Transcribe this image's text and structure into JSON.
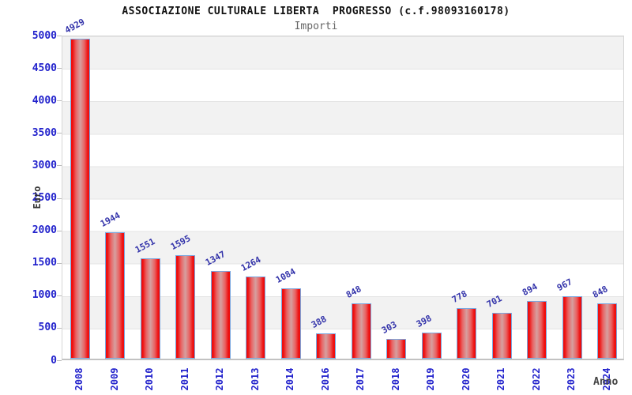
{
  "header": {
    "title": "ASSOCIAZIONE CULTURALE LIBERTA  PROGRESSO (c.f.98093160178)",
    "subtitle": "Importi"
  },
  "chart_data": {
    "type": "bar",
    "title": "ASSOCIAZIONE CULTURALE LIBERTA  PROGRESSO (c.f.98093160178)",
    "subtitle": "Importi",
    "categories": [
      "2008",
      "2009",
      "2010",
      "2011",
      "2012",
      "2013",
      "2014",
      "2016",
      "2017",
      "2018",
      "2019",
      "2020",
      "2021",
      "2022",
      "2023",
      "2024"
    ],
    "values": [
      4929,
      1944,
      1551,
      1595,
      1347,
      1264,
      1084,
      388,
      848,
      303,
      398,
      778,
      701,
      894,
      967,
      848
    ],
    "xlabel": "Anno",
    "ylabel": "Euro",
    "ylim": [
      0,
      5000
    ],
    "ytick_step": 500,
    "grid": true,
    "legend_position": "none",
    "colors": {
      "bar_edge": "#ee0f0f",
      "bar_center": "#d6a0a0",
      "bar_border": "#7aa7e0",
      "value_label": "#3333aa",
      "tick_label": "#2222cc",
      "band_gray": "#f2f2f2",
      "band_white": "#ffffff"
    }
  }
}
